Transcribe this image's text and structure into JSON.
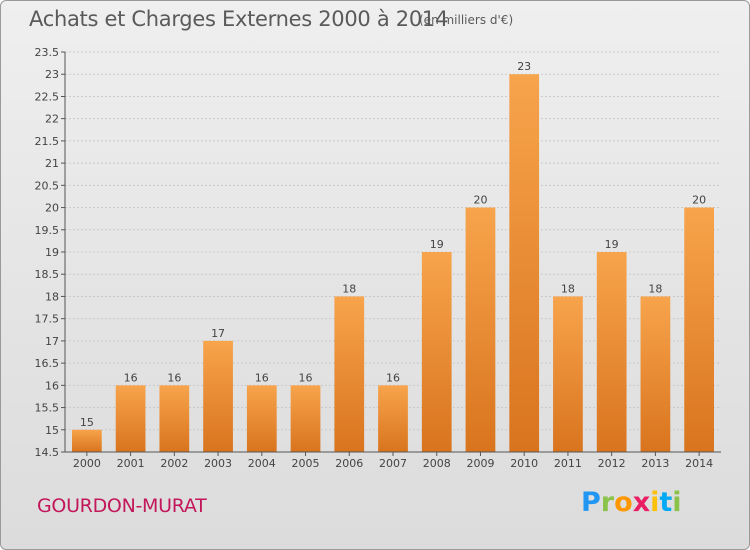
{
  "header": {
    "title": "Achats et Charges Externes 2000 à 2014",
    "subtitle": "(en milliers d'€)"
  },
  "footer": {
    "commune": "GOURDON-MURAT",
    "logo": {
      "letters": [
        "P",
        "r",
        "o",
        "x",
        "i",
        "t",
        "i"
      ],
      "colors": [
        "#2196f3",
        "#8bc34a",
        "#ff9800",
        "#e91e63",
        "#ffc107",
        "#03a9f4",
        "#8bc34a"
      ]
    }
  },
  "colors": {
    "bar_top": "#f7a44c",
    "bar_bottom": "#d9741e",
    "grid": "#c9c9c9",
    "axis": "#555555"
  },
  "chart_data": {
    "type": "bar",
    "title": "Achats et Charges Externes 2000 à 2014",
    "categories": [
      "2000",
      "2001",
      "2002",
      "2003",
      "2004",
      "2005",
      "2006",
      "2007",
      "2008",
      "2009",
      "2010",
      "2011",
      "2012",
      "2013",
      "2014"
    ],
    "values": [
      15,
      16,
      16,
      17,
      16,
      16,
      18,
      16,
      19,
      20,
      23,
      18,
      19,
      18,
      20
    ],
    "data_labels": [
      "15",
      "16",
      "16",
      "17",
      "16",
      "16",
      "18",
      "16",
      "19",
      "20",
      "23",
      "18",
      "19",
      "18",
      "20"
    ],
    "ylim": [
      14.5,
      23.5
    ],
    "yticks": [
      14.5,
      15,
      15.5,
      16,
      16.5,
      17,
      17.5,
      18,
      18.5,
      19,
      19.5,
      20,
      20.5,
      21,
      21.5,
      22,
      22.5,
      23,
      23.5
    ],
    "ytick_labels": [
      "14.5",
      "15",
      "15.5",
      "16",
      "16.5",
      "17",
      "17.5",
      "18",
      "18.5",
      "19",
      "19.5",
      "20",
      "20.5",
      "21",
      "21.5",
      "22",
      "22.5",
      "23",
      "23.5"
    ],
    "grid": true,
    "legend": "none"
  }
}
